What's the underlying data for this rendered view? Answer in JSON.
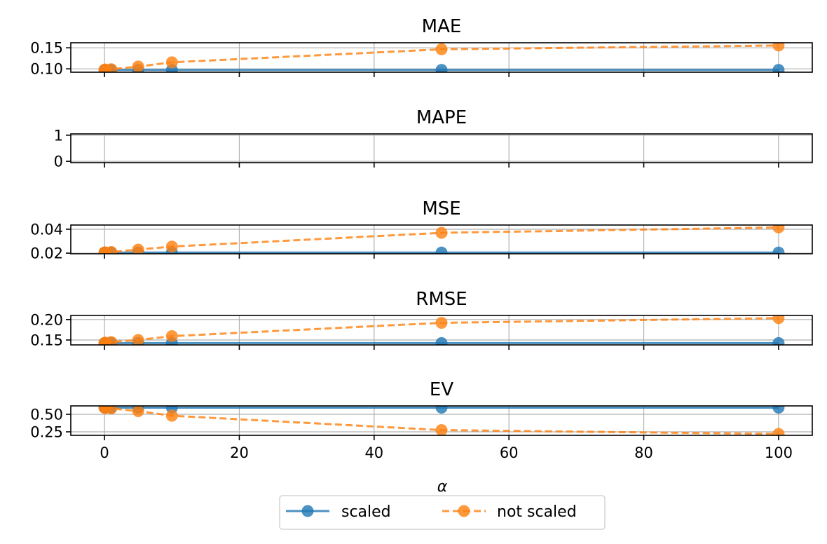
{
  "chart_data": {
    "type": "line",
    "xlabel": "α",
    "x": [
      0,
      0.1,
      1,
      5,
      10,
      50,
      100
    ],
    "xlim": [
      -5,
      105
    ],
    "xticks": [
      0,
      20,
      40,
      60,
      80,
      100
    ],
    "grid": true,
    "legend": {
      "placement": "bottom-center",
      "entries": [
        {
          "name": "scaled",
          "color": "#1f77b4",
          "linestyle": "solid",
          "marker": "circle"
        },
        {
          "name": "not scaled",
          "color": "#ff7f0e",
          "linestyle": "dashed",
          "marker": "circle"
        }
      ]
    },
    "subplots": [
      {
        "title": "MAE",
        "ylim": [
          0.092,
          0.162
        ],
        "yticks": [
          0.1,
          0.15
        ],
        "ytick_labels": [
          "0.10",
          "0.15"
        ],
        "series": [
          {
            "name": "scaled",
            "values": [
              0.0975,
              0.0975,
              0.0975,
              0.0975,
              0.0975,
              0.0975,
              0.0975
            ]
          },
          {
            "name": "not scaled",
            "values": [
              0.0975,
              0.0985,
              0.099,
              0.1055,
              0.1155,
              0.1465,
              0.1555
            ]
          }
        ]
      },
      {
        "title": "MAPE",
        "ylim": [
          -0.05,
          1.05
        ],
        "yticks": [
          0,
          1
        ],
        "ytick_labels": [
          "0",
          "1"
        ],
        "series": [
          {
            "name": "scaled",
            "values": []
          },
          {
            "name": "not scaled",
            "values": []
          }
        ]
      },
      {
        "title": "MSE",
        "ylim": [
          0.0195,
          0.0435
        ],
        "yticks": [
          0.02,
          0.04
        ],
        "ytick_labels": [
          "0.02",
          "0.04"
        ],
        "series": [
          {
            "name": "scaled",
            "values": [
              0.0205,
              0.0205,
              0.0205,
              0.0205,
              0.0205,
              0.0205,
              0.0205
            ]
          },
          {
            "name": "not scaled",
            "values": [
              0.0205,
              0.0207,
              0.021,
              0.023,
              0.0255,
              0.037,
              0.0415
            ]
          }
        ]
      },
      {
        "title": "RMSE",
        "ylim": [
          0.138,
          0.21
        ],
        "yticks": [
          0.15,
          0.2
        ],
        "ytick_labels": [
          "0.15",
          "0.20"
        ],
        "series": [
          {
            "name": "scaled",
            "values": [
              0.1425,
              0.1425,
              0.1425,
              0.1425,
              0.1425,
              0.1425,
              0.1425
            ]
          },
          {
            "name": "not scaled",
            "values": [
              0.1425,
              0.1435,
              0.145,
              0.15,
              0.1595,
              0.192,
              0.2035
            ]
          }
        ]
      },
      {
        "title": "EV",
        "ylim": [
          0.2,
          0.62
        ],
        "yticks": [
          0.25,
          0.5
        ],
        "ytick_labels": [
          "0.25",
          "0.50"
        ],
        "series": [
          {
            "name": "scaled",
            "values": [
              0.595,
              0.595,
              0.595,
              0.595,
              0.595,
              0.595,
              0.595
            ]
          },
          {
            "name": "not scaled",
            "values": [
              0.595,
              0.59,
              0.585,
              0.545,
              0.48,
              0.275,
              0.22
            ]
          }
        ]
      }
    ]
  }
}
